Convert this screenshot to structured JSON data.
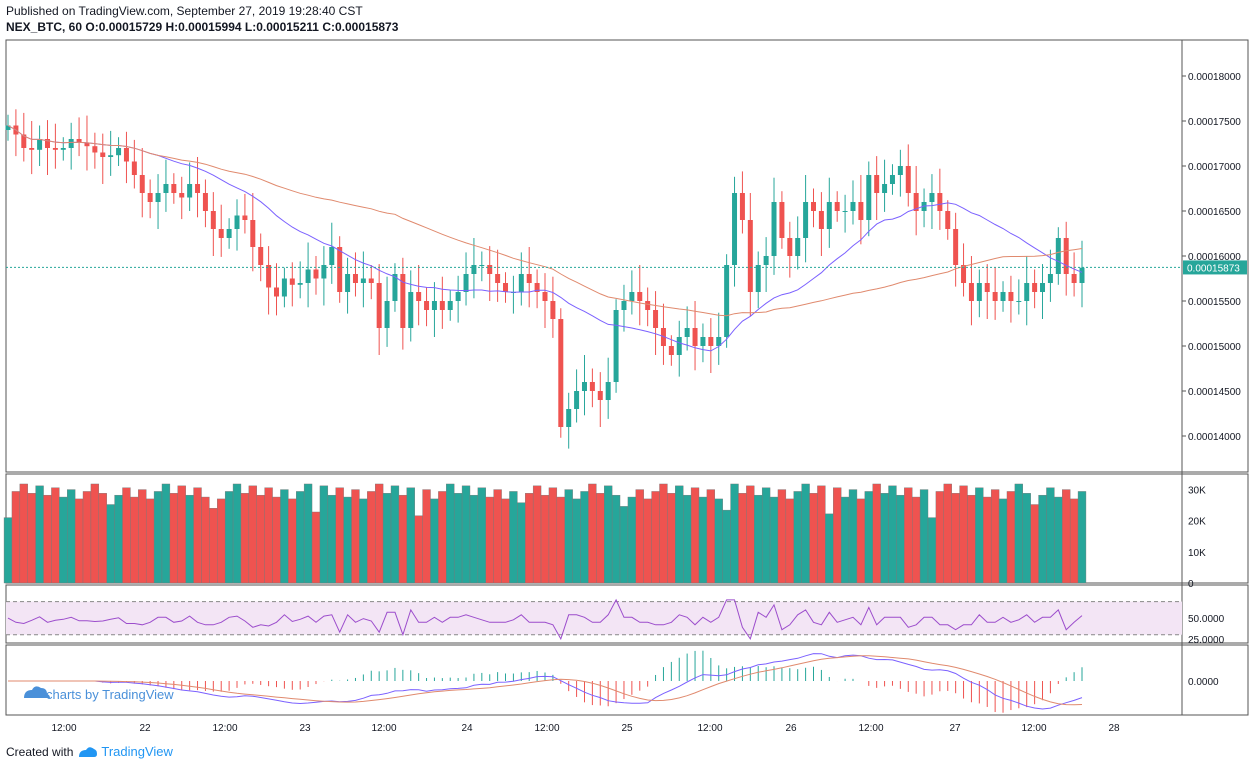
{
  "header": {
    "published": "Published on TradingView.com, September 27, 2019 19:28:40 CST",
    "symbol": "NEX_BTC, 60",
    "o_label": "O:",
    "o": "0.00015729",
    "h_label": "H:",
    "h": "0.00015994",
    "l_label": "L:",
    "l": "0.00015211",
    "c_label": "C:",
    "c": "0.00015873"
  },
  "footer": {
    "created": "Created with",
    "brand": "TradingView"
  },
  "watermark": "charts by TradingView",
  "colors": {
    "up": "#26a69a",
    "down": "#ef5350",
    "ma_fast": "#7b61ff",
    "ma_slow": "#e08a6e",
    "rsi_bg": "#f3e5f5",
    "rsi_line": "#9c4dcc",
    "last_price": "#26a69a"
  },
  "chart_data": [
    {
      "type": "candlestick",
      "symbol": "NEX_BTC",
      "interval": "60",
      "ylim": [
        0.000136,
        0.000184
      ],
      "y_ticks": [
        "0.00018000",
        "0.00017500",
        "0.00017000",
        "0.00016500",
        "0.00016000",
        "0.00015500",
        "0.00015000",
        "0.00014500",
        "0.00014000"
      ],
      "last_price": "0.00015873",
      "x_ticks": [
        "12:00",
        "22",
        "12:00",
        "23",
        "12:00",
        "24",
        "12:00",
        "25",
        "12:00",
        "26",
        "12:00",
        "27",
        "12:00",
        "28"
      ],
      "close": [
        0.0001745,
        0.0001735,
        0.000172,
        0.0001718,
        0.000173,
        0.000172,
        0.0001718,
        0.000172,
        0.000173,
        0.0001726,
        0.0001722,
        0.0001715,
        0.000171,
        0.0001712,
        0.000172,
        0.0001705,
        0.000169,
        0.000167,
        0.000166,
        0.000167,
        0.000168,
        0.000167,
        0.0001665,
        0.000168,
        0.000167,
        0.000165,
        0.000163,
        0.000162,
        0.000163,
        0.0001645,
        0.000164,
        0.000161,
        0.000159,
        0.0001565,
        0.0001555,
        0.0001575,
        0.0001568,
        0.000157,
        0.0001585,
        0.0001575,
        0.000159,
        0.000161,
        0.000156,
        0.000158,
        0.000157,
        0.0001575,
        0.000157,
        0.000152,
        0.000155,
        0.000158,
        0.000152,
        0.000156,
        0.000155,
        0.000154,
        0.000155,
        0.000154,
        0.000155,
        0.000156,
        0.000158,
        0.000159,
        0.000159,
        0.000158,
        0.000157,
        0.000156,
        0.000156,
        0.000158,
        0.000157,
        0.000156,
        0.000155,
        0.000153,
        0.000141,
        0.000143,
        0.000145,
        0.000146,
        0.000145,
        0.000144,
        0.000146,
        0.000154,
        0.000155,
        0.000156,
        0.000155,
        0.000154,
        0.000152,
        0.00015,
        0.000149,
        0.000151,
        0.000152,
        0.00015,
        0.000151,
        0.00015,
        0.000151,
        0.000159,
        0.000167,
        0.000164,
        0.000156,
        0.000159,
        0.00016,
        0.000166,
        0.000162,
        0.00016,
        0.000162,
        0.000166,
        0.000165,
        0.000163,
        0.000166,
        0.000165,
        0.000165,
        0.000166,
        0.000164,
        0.000169,
        0.000167,
        0.000168,
        0.000169,
        0.00017,
        0.000167,
        0.000165,
        0.000166,
        0.000167,
        0.000165,
        0.000163,
        0.000159,
        0.000157,
        0.000155,
        0.000157,
        0.000156,
        0.000155,
        0.000156,
        0.000155,
        0.000155,
        0.000157,
        0.000156,
        0.000157,
        0.000158,
        0.000162,
        0.000158,
        0.000157,
        0.0001587
      ]
    },
    {
      "type": "bar",
      "name": "Volume",
      "y_ticks": [
        "30K",
        "20K",
        "10K",
        "0"
      ],
      "ylim": [
        0,
        35000
      ]
    },
    {
      "type": "line",
      "name": "RSI",
      "y_ticks": [
        "50.0000",
        "25.0000"
      ],
      "ylim": [
        20,
        90
      ],
      "bands": [
        30,
        70
      ]
    },
    {
      "type": "line",
      "name": "MACD",
      "y_ticks": [
        "0.0000"
      ]
    }
  ]
}
